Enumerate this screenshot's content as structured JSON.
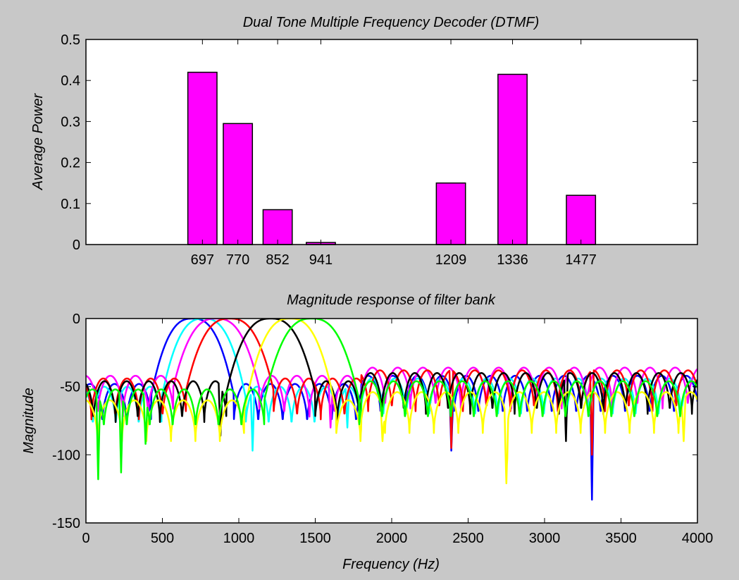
{
  "colors": {
    "figure_background": "#c8c8c8",
    "axes_background": "#ffffff",
    "bar_fill": "#ff00ff",
    "bar_edge": "#000000",
    "filter_colors": [
      "#0000ff",
      "#00ffff",
      "#ff00ff",
      "#ff0000",
      "#000000",
      "#ffff00",
      "#00ff00"
    ]
  },
  "chart_data": [
    {
      "type": "bar",
      "title": "Dual Tone Multiple Frequency Decoder (DTMF)",
      "xlabel": "",
      "ylabel": "Average Power",
      "xlim": [
        457,
        1717
      ],
      "ylim": [
        0,
        0.5
      ],
      "yticks": [
        0,
        0.1,
        0.2,
        0.3,
        0.4,
        0.5
      ],
      "ytick_labels": [
        "0",
        "0.1",
        "0.2",
        "0.3",
        "0.4",
        "0.5"
      ],
      "categories": [
        "697",
        "770",
        "852",
        "941",
        "1209",
        "1336",
        "1477"
      ],
      "x": [
        697,
        770,
        852,
        941,
        1209,
        1336,
        1477
      ],
      "bar_width_hz": 60,
      "values": [
        0.42,
        0.295,
        0.085,
        0.005,
        0.15,
        0.415,
        0.12
      ],
      "grid": false,
      "legend": "none"
    },
    {
      "type": "line",
      "title": "Magnitude response of filter bank",
      "xlabel": "Frequency (Hz)",
      "ylabel": "Magnitude",
      "xlim": [
        0,
        4000
      ],
      "ylim": [
        -150,
        0
      ],
      "xticks": [
        0,
        500,
        1000,
        1500,
        2000,
        2500,
        3000,
        3500,
        4000
      ],
      "xtick_labels": [
        "0",
        "500",
        "1000",
        "1500",
        "2000",
        "2500",
        "3000",
        "3500",
        "4000"
      ],
      "yticks": [
        -150,
        -100,
        -50,
        0
      ],
      "ytick_labels": [
        "-150",
        "-100",
        "-50",
        "0"
      ],
      "grid": false,
      "legend": "none",
      "filter_model": {
        "passband_halfwidth_hz": [
          270,
          275,
          280,
          285,
          290,
          300,
          310
        ],
        "sidelobe_period_hz": [
          160,
          150,
          165,
          155,
          145,
          160,
          150
        ],
        "sidelobe_level_db": [
          -48,
          -50,
          -42,
          -44,
          -46,
          -60,
          -52
        ],
        "null_depth_db": 30
      },
      "series": [
        {
          "center_hz": 697,
          "color": "#0000ff",
          "deep_nulls": [
            [
              2390,
              -97
            ],
            [
              3310,
              -133
            ]
          ]
        },
        {
          "center_hz": 770,
          "color": "#00ffff",
          "deep_nulls": [
            [
              1090,
              -97
            ],
            [
              1710,
              -80
            ]
          ]
        },
        {
          "center_hz": 852,
          "color": "#ff00ff",
          "deep_nulls": [
            [
              1600,
              -80
            ]
          ]
        },
        {
          "center_hz": 941,
          "color": "#ff0000",
          "deep_nulls": [
            [
              2390,
              -95
            ],
            [
              3310,
              -100
            ]
          ]
        },
        {
          "center_hz": 1209,
          "color": "#000000",
          "deep_nulls": [
            [
              880,
              -86
            ],
            [
              3140,
              -90
            ]
          ]
        },
        {
          "center_hz": 1336,
          "color": "#ffff00",
          "deep_nulls": [
            [
              2750,
              -121
            ],
            [
              1940,
              -90
            ],
            [
              3910,
              -90
            ]
          ]
        },
        {
          "center_hz": 1477,
          "color": "#00ff00",
          "deep_nulls": [
            [
              80,
              -118
            ],
            [
              230,
              -113
            ],
            [
              390,
              -92
            ]
          ]
        }
      ]
    }
  ]
}
